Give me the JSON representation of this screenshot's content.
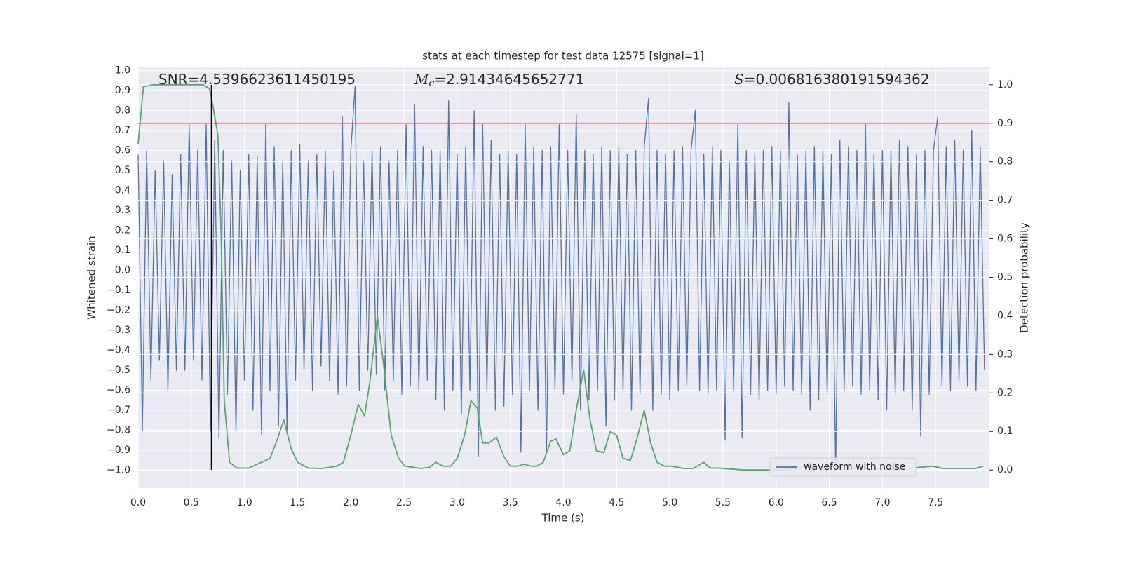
{
  "chart_data": {
    "type": "line",
    "title": "stats at each timestep for test data 12575 [signal=1]",
    "xlabel": "Time (s)",
    "ylabel": "Whitened strain",
    "y2label": "Detection probability",
    "annotations": [
      {
        "text": "SNR=4.5396623611450195"
      },
      {
        "symbol": "M",
        "subscript": "c",
        "text": "=2.91434645652771"
      },
      {
        "symbol": "S",
        "text": "=0.006816380191594362"
      }
    ],
    "xlim": [
      0,
      8.0
    ],
    "ylim": [
      -1.09,
      1.02
    ],
    "y2lim": [
      -0.047,
      1.047
    ],
    "xticks": [
      {
        "value": 0,
        "label": "0.0"
      },
      0.5,
      {
        "value": 1,
        "label": "1.0"
      },
      1.5,
      {
        "value": 2,
        "label": "2.0"
      },
      2.5,
      {
        "value": 3,
        "label": "3.0"
      },
      3.5,
      {
        "value": 4,
        "label": "4.0"
      },
      4.5,
      {
        "value": 5,
        "label": "5.0"
      },
      5.5,
      {
        "value": 6,
        "label": "6.0"
      },
      6.5,
      {
        "value": 7,
        "label": "7.0"
      },
      7.5
    ],
    "yticks": [
      {
        "value": -1,
        "label": "−1.0"
      },
      {
        "value": -0.9,
        "label": "−0.9"
      },
      {
        "value": -0.8,
        "label": "−0.8"
      },
      {
        "value": -0.7,
        "label": "−0.7"
      },
      {
        "value": -0.6,
        "label": "−0.6"
      },
      {
        "value": -0.5,
        "label": "−0.5"
      },
      {
        "value": -0.4,
        "label": "−0.4"
      },
      {
        "value": -0.3,
        "label": "−0.3"
      },
      {
        "value": -0.2,
        "label": "−0.2"
      },
      {
        "value": -0.1,
        "label": "−0.1"
      },
      {
        "value": 0,
        "label": "0.0"
      },
      0.1,
      0.2,
      0.3,
      0.4,
      0.5,
      0.6,
      0.7,
      0.8,
      0.9,
      {
        "value": 1,
        "label": "1.0"
      }
    ],
    "y2ticks": [
      {
        "value": 0,
        "label": "0.0"
      },
      0.1,
      0.2,
      0.3,
      0.4,
      0.5,
      0.6,
      0.7,
      0.8,
      0.9,
      {
        "value": 1,
        "label": "1.0"
      }
    ],
    "grid": true,
    "legend": "lower right",
    "hline": {
      "y2": 0.9,
      "color": "#c44e52"
    },
    "vline": {
      "x": 0.69,
      "y2min": 0,
      "y2max": 1.0,
      "color": "#000000"
    },
    "series": [
      {
        "name": "waveform with noise",
        "color": "#4c72b0",
        "x": [
          0,
          0.04,
          0.08,
          0.12,
          0.16,
          0.2,
          0.24,
          0.28,
          0.32,
          0.36,
          0.4,
          0.44,
          0.48,
          0.52,
          0.56,
          0.6,
          0.64,
          0.68,
          0.72,
          0.76,
          0.8,
          0.84,
          0.88,
          0.92,
          0.96,
          1,
          1.04,
          1.08,
          1.12,
          1.16,
          1.2,
          1.24,
          1.28,
          1.32,
          1.36,
          1.4,
          1.44,
          1.48,
          1.52,
          1.56,
          1.6,
          1.64,
          1.68,
          1.72,
          1.76,
          1.8,
          1.84,
          1.88,
          1.92,
          1.96,
          2,
          2.04,
          2.08,
          2.12,
          2.16,
          2.2,
          2.24,
          2.28,
          2.32,
          2.36,
          2.4,
          2.44,
          2.48,
          2.52,
          2.56,
          2.6,
          2.64,
          2.68,
          2.72,
          2.76,
          2.8,
          2.84,
          2.88,
          2.92,
          2.96,
          3,
          3.04,
          3.08,
          3.12,
          3.16,
          3.2,
          3.24,
          3.28,
          3.32,
          3.36,
          3.4,
          3.44,
          3.48,
          3.52,
          3.56,
          3.6,
          3.64,
          3.68,
          3.72,
          3.76,
          3.8,
          3.84,
          3.88,
          3.92,
          3.96,
          4,
          4.04,
          4.08,
          4.12,
          4.16,
          4.2,
          4.24,
          4.28,
          4.32,
          4.36,
          4.4,
          4.44,
          4.48,
          4.52,
          4.56,
          4.6,
          4.64,
          4.68,
          4.72,
          4.76,
          4.8,
          4.84,
          4.88,
          4.92,
          4.96,
          5,
          5.04,
          5.08,
          5.12,
          5.16,
          5.2,
          5.24,
          5.28,
          5.32,
          5.36,
          5.4,
          5.44,
          5.48,
          5.52,
          5.56,
          5.6,
          5.64,
          5.68,
          5.72,
          5.76,
          5.8,
          5.84,
          5.88,
          5.92,
          5.96,
          6,
          6.04,
          6.08,
          6.12,
          6.16,
          6.2,
          6.24,
          6.28,
          6.32,
          6.36,
          6.4,
          6.44,
          6.48,
          6.52,
          6.56,
          6.6,
          6.64,
          6.68,
          6.72,
          6.76,
          6.8,
          6.84,
          6.88,
          6.92,
          6.96,
          7,
          7.04,
          7.08,
          7.12,
          7.16,
          7.2,
          7.24,
          7.28,
          7.32,
          7.36,
          7.4,
          7.44,
          7.48,
          7.52,
          7.56,
          7.6,
          7.64,
          7.68,
          7.72,
          7.76,
          7.8,
          7.84,
          7.88,
          7.92,
          7.96
        ],
        "values": [
          0.58,
          -0.8,
          0.6,
          -0.55,
          0.5,
          -0.45,
          0.55,
          -0.6,
          0.48,
          -0.5,
          0.58,
          -0.5,
          0.73,
          -0.45,
          0.6,
          -0.55,
          0.73,
          -0.8,
          0.65,
          -0.84,
          0.6,
          -0.62,
          0.55,
          -0.81,
          0.5,
          -0.55,
          0.58,
          -0.7,
          0.57,
          -0.82,
          0.73,
          -0.6,
          0.62,
          -0.78,
          0.55,
          -0.8,
          0.6,
          -0.55,
          0.63,
          -0.5,
          0.55,
          -0.6,
          0.58,
          -0.48,
          0.6,
          -0.55,
          0.5,
          -0.62,
          0.77,
          -0.58,
          0.6,
          0.92,
          -0.6,
          0.55,
          -0.5,
          0.6,
          -0.52,
          0.62,
          -0.6,
          0.55,
          -0.55,
          0.6,
          -0.62,
          0.73,
          -0.58,
          0.83,
          -0.6,
          0.62,
          -0.55,
          0.6,
          -0.65,
          0.6,
          -0.7,
          0.85,
          -0.6,
          0.58,
          -0.72,
          0.62,
          -0.6,
          0.8,
          -0.93,
          0.73,
          -0.6,
          0.65,
          -0.7,
          0.58,
          -0.68,
          0.6,
          -0.62,
          0.58,
          -0.91,
          0.73,
          -0.6,
          0.62,
          -0.7,
          0.6,
          -0.92,
          0.62,
          -0.6,
          0.73,
          -0.62,
          0.6,
          -0.55,
          0.78,
          -0.7,
          0.6,
          -0.65,
          0.58,
          -0.6,
          0.62,
          -0.78,
          0.6,
          -0.65,
          0.62,
          -0.6,
          0.58,
          -0.7,
          0.6,
          -0.62,
          0.62,
          0.86,
          -0.7,
          0.6,
          -0.62,
          0.58,
          -0.65,
          0.6,
          -0.6,
          0.62,
          -0.58,
          0.6,
          0.8,
          -0.6,
          0.58,
          -0.62,
          0.62,
          -0.6,
          0.6,
          -0.85,
          0.55,
          -0.6,
          0.73,
          -0.84,
          0.6,
          -0.62,
          0.58,
          -0.65,
          0.6,
          -0.6,
          0.62,
          -0.62,
          0.6,
          -0.58,
          0.84,
          -0.6,
          0.58,
          -0.62,
          0.6,
          -0.7,
          0.62,
          -0.65,
          0.6,
          -0.62,
          0.58,
          -1.0,
          0.65,
          -0.6,
          0.62,
          -0.58,
          0.6,
          -0.62,
          0.73,
          -0.6,
          0.58,
          -0.65,
          0.6,
          -0.7,
          0.6,
          -0.62,
          0.65,
          -0.6,
          0.62,
          -0.7,
          0.58,
          -0.83,
          0.6,
          -0.62,
          0.6,
          0.77,
          -0.58,
          0.62,
          -0.6,
          0.65,
          -0.55,
          0.6,
          -0.58,
          0.7,
          -0.6,
          0.62,
          -0.5
        ]
      },
      {
        "color": "#55a868",
        "axis": "y2",
        "x": [
          0,
          0.05,
          0.14,
          0.61,
          0.67,
          0.7,
          0.75,
          0.78,
          0.81,
          0.86,
          0.93,
          1.04,
          1.24,
          1.31,
          1.37,
          1.44,
          1.5,
          1.6,
          1.73,
          1.87,
          1.93,
          2.0,
          2.07,
          2.13,
          2.18,
          2.25,
          2.31,
          2.38,
          2.45,
          2.51,
          2.66,
          2.74,
          2.8,
          2.87,
          2.94,
          3.0,
          3.07,
          3.13,
          3.19,
          3.24,
          3.3,
          3.37,
          3.44,
          3.5,
          3.57,
          3.63,
          3.7,
          3.75,
          3.81,
          3.88,
          3.93,
          4.0,
          4.06,
          4.12,
          4.19,
          4.25,
          4.31,
          4.38,
          4.44,
          4.5,
          4.56,
          4.63,
          4.69,
          4.76,
          4.82,
          4.88,
          4.95,
          5.02,
          5.13,
          5.22,
          5.32,
          5.38,
          5.46,
          5.69,
          6.02,
          6.22,
          6.32,
          6.38,
          6.48,
          6.56,
          6.63,
          6.88,
          7.08,
          7.28,
          7.47,
          7.57,
          7.87,
          7.95
        ],
        "values": [
          0.847,
          0.995,
          1.0,
          1.0,
          0.99,
          0.95,
          0.87,
          0.62,
          0.18,
          0.02,
          0.005,
          0.005,
          0.03,
          0.08,
          0.13,
          0.055,
          0.02,
          0.005,
          0.004,
          0.01,
          0.02,
          0.09,
          0.17,
          0.14,
          0.23,
          0.4,
          0.27,
          0.09,
          0.03,
          0.01,
          0.004,
          0.007,
          0.02,
          0.01,
          0.01,
          0.03,
          0.09,
          0.18,
          0.16,
          0.07,
          0.07,
          0.085,
          0.035,
          0.01,
          0.01,
          0.015,
          0.01,
          0.01,
          0.02,
          0.075,
          0.08,
          0.04,
          0.05,
          0.155,
          0.26,
          0.13,
          0.05,
          0.045,
          0.1,
          0.09,
          0.03,
          0.025,
          0.08,
          0.155,
          0.07,
          0.02,
          0.01,
          0.01,
          0.004,
          0.004,
          0.02,
          0.005,
          0.005,
          0,
          0,
          0.004,
          0.02,
          0.007,
          0.004,
          0.015,
          0.004,
          0.005,
          0.004,
          0.005,
          0.01,
          0.004,
          0.004,
          0.01
        ]
      }
    ]
  }
}
